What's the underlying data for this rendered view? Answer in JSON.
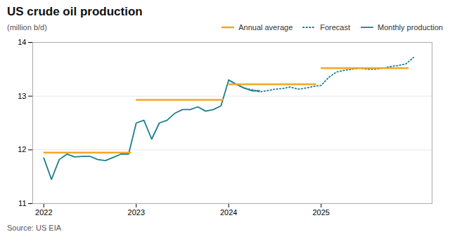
{
  "chart_data": {
    "type": "line",
    "title": "US crude oil production",
    "ylabel": "(million b/d)",
    "annotations": [
      "Source: US EIA"
    ],
    "xlim": [
      2021.88,
      2026.2
    ],
    "xticks": [
      2022,
      2023,
      2024,
      2025
    ],
    "ylim": [
      11,
      14
    ],
    "yticks": [
      11,
      12,
      13,
      14
    ],
    "grid": true,
    "legend": "top",
    "series": [
      {
        "name": "Annual average",
        "type": "segment",
        "color": "#f5a623",
        "line_style": "solid",
        "x_start": [
          2022.0,
          2023.0,
          2024.0,
          2025.0
        ],
        "x_end": [
          2022.95,
          2023.95,
          2024.95,
          2025.95
        ],
        "values": [
          11.95,
          12.93,
          13.22,
          13.52
        ]
      },
      {
        "name": "Forecast",
        "type": "line",
        "color": "#1a7f8e",
        "line_style": "dotted",
        "x": [
          2024.0,
          2024.083,
          2024.167,
          2024.25,
          2024.333,
          2024.417,
          2024.5,
          2024.583,
          2024.667,
          2024.75,
          2024.833,
          2024.917,
          2025.0,
          2025.083,
          2025.167,
          2025.25,
          2025.333,
          2025.417,
          2025.5,
          2025.583,
          2025.667,
          2025.75,
          2025.833,
          2025.917,
          2026.0
        ],
        "values": [
          13.3,
          13.22,
          13.15,
          13.12,
          13.08,
          13.1,
          13.13,
          13.14,
          13.17,
          13.13,
          13.15,
          13.18,
          13.2,
          13.35,
          13.45,
          13.48,
          13.5,
          13.52,
          13.5,
          13.5,
          13.52,
          13.55,
          13.57,
          13.6,
          13.72
        ]
      },
      {
        "name": "Monthly production",
        "type": "line",
        "color": "#1a7f8e",
        "line_style": "solid",
        "x": [
          2022.0,
          2022.083,
          2022.167,
          2022.25,
          2022.333,
          2022.417,
          2022.5,
          2022.583,
          2022.667,
          2022.75,
          2022.833,
          2022.917,
          2023.0,
          2023.083,
          2023.167,
          2023.25,
          2023.333,
          2023.417,
          2023.5,
          2023.583,
          2023.667,
          2023.75,
          2023.833,
          2023.917,
          2024.0,
          2024.083,
          2024.167,
          2024.25,
          2024.333
        ],
        "values": [
          11.85,
          11.45,
          11.82,
          11.92,
          11.87,
          11.88,
          11.88,
          11.82,
          11.8,
          11.86,
          11.92,
          11.92,
          12.5,
          12.55,
          12.2,
          12.5,
          12.55,
          12.68,
          12.75,
          12.75,
          12.8,
          12.72,
          12.75,
          12.82,
          13.3,
          13.22,
          13.15,
          13.1,
          13.1
        ]
      }
    ]
  }
}
